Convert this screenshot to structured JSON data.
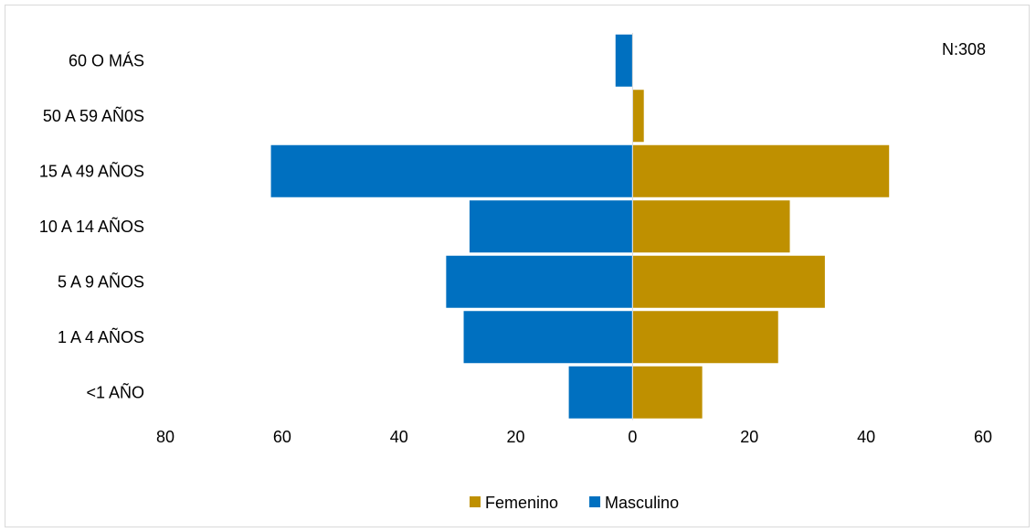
{
  "chart_data": {
    "type": "bar",
    "orientation": "horizontal",
    "subtype": "population-pyramid",
    "note": "N:308",
    "categories": [
      "60 O MÁS",
      "50 A 59 AÑ0S",
      "15 A 49 AÑOS",
      "10 A 14 AÑOS",
      "5 A 9 AÑOS",
      "1 A 4 AÑOS",
      "<1 AÑO"
    ],
    "series": [
      {
        "name": "Masculino",
        "color": "#0070C0",
        "side": "left",
        "values": [
          3,
          0,
          62,
          28,
          32,
          29,
          11
        ]
      },
      {
        "name": "Femenino",
        "color": "#BF9000",
        "side": "right",
        "values": [
          0,
          2,
          44,
          27,
          33,
          25,
          12
        ]
      }
    ],
    "xlim": [
      -80,
      60
    ],
    "xticks": [
      -80,
      -60,
      -40,
      -20,
      0,
      20,
      40,
      60
    ],
    "xtick_labels": [
      "80",
      "60",
      "40",
      "20",
      "0",
      "20",
      "40",
      "60"
    ],
    "legend": {
      "position": "bottom",
      "entries": [
        "Femenino",
        "Masculino"
      ]
    },
    "grid": false
  }
}
